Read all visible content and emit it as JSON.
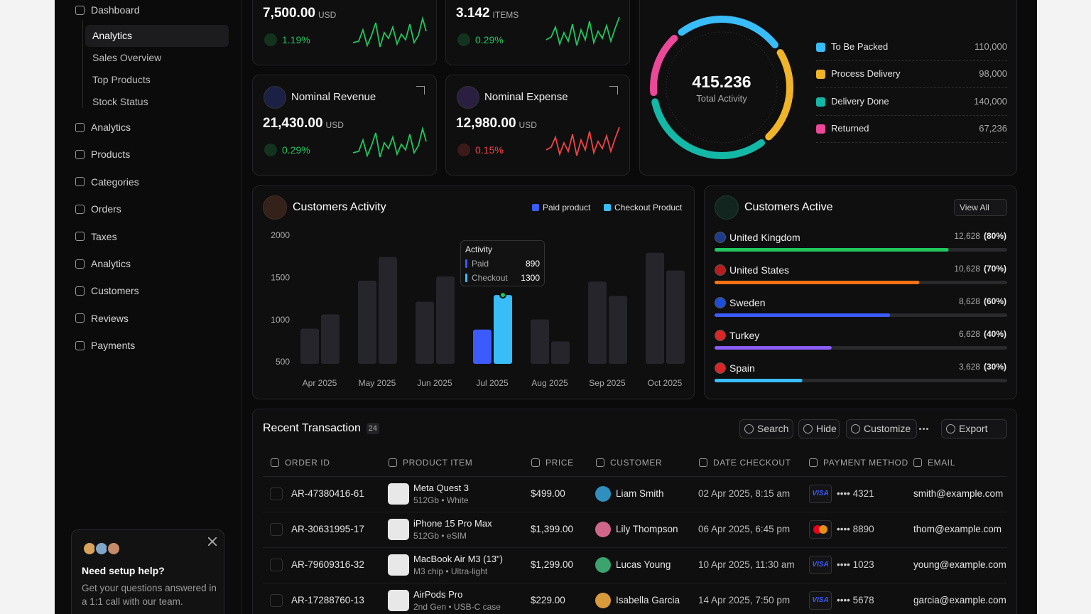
{
  "sidebar": {
    "dashboard": "Dashboard",
    "sub_items": [
      "Analytics",
      "Sales Overview",
      "Top Products",
      "Stock Status"
    ],
    "items": [
      "Analytics",
      "Products",
      "Categories",
      "Orders",
      "Taxes",
      "Analytics",
      "Customers",
      "Reviews",
      "Payments"
    ]
  },
  "help": {
    "title": "Need setup help?",
    "text": "Get your questions answered in a 1:1 call with our team."
  },
  "stats": [
    {
      "value": "7,500.00",
      "unit": "USD",
      "change": "1.19%",
      "color": "#22c55e"
    },
    {
      "value": "3.142",
      "unit": "ITEMS",
      "change": "0.29%",
      "color": "#22c55e"
    },
    {
      "title": "Nominal Revenue",
      "value": "21,430.00",
      "unit": "USD",
      "change": "0.29%",
      "color": "#22c55e"
    },
    {
      "title": "Nominal Expense",
      "value": "12,980.00",
      "unit": "USD",
      "change": "0.15%",
      "color": "#ef4444"
    }
  ],
  "activity": {
    "total": "415.236",
    "label": "Total Activity",
    "legend": [
      {
        "name": "To Be Packed",
        "value": 110000,
        "label": "110,000",
        "color": "#38bdf8"
      },
      {
        "name": "Process Delivery",
        "value": 98000,
        "label": "98,000",
        "color": "#f0b429"
      },
      {
        "name": "Delivery Done",
        "value": 140000,
        "label": "140,000",
        "color": "#14b8a6"
      },
      {
        "name": "Returned",
        "value": 67236,
        "label": "67,236",
        "color": "#ec4899"
      }
    ]
  },
  "chart_data": {
    "type": "bar",
    "title": "Customers Activity",
    "categories": [
      "Apr 2025",
      "May 2025",
      "Jun 2025",
      "Jul 2025",
      "Aug 2025",
      "Sep 2025",
      "Oct 2025"
    ],
    "series": [
      {
        "name": "Paid product",
        "color": "#3b5bfd",
        "values": [
          900,
          1470,
          1220,
          890,
          1010,
          1460,
          1800
        ]
      },
      {
        "name": "Checkout Product",
        "color": "#38bdf8",
        "values": [
          1070,
          1750,
          1520,
          1300,
          750,
          1290,
          1590
        ]
      }
    ],
    "muted_color": "#25252b",
    "ylim": [
      500,
      2000
    ],
    "yticks": [
      500,
      1000,
      1500,
      2000
    ],
    "tooltip": {
      "title": "Activity",
      "labels": [
        "Paid",
        "Checkout"
      ],
      "category": "Jul 2025"
    }
  },
  "customers_active": {
    "title": "Customers Active",
    "action": "View All",
    "countries": [
      {
        "name": "United Kingdom",
        "count": "12,628",
        "percent": 80,
        "percent_label": "(80%)",
        "color": "#22c55e"
      },
      {
        "name": "United States",
        "count": "10,628",
        "percent": 70,
        "percent_label": "(70%)",
        "color": "#f97316"
      },
      {
        "name": "Sweden",
        "count": "8,628",
        "percent": 60,
        "percent_label": "(60%)",
        "color": "#3b5bfd"
      },
      {
        "name": "Turkey",
        "count": "6,628",
        "percent": 40,
        "percent_label": "(40%)",
        "color": "#8b5cf6"
      },
      {
        "name": "Spain",
        "count": "3,628",
        "percent": 30,
        "percent_label": "(30%)",
        "color": "#38bdf8"
      }
    ]
  },
  "transactions": {
    "title": "Recent Transaction",
    "count": "24",
    "buttons": [
      "Search",
      "Hide",
      "Customize",
      "Export"
    ],
    "columns": [
      "ORDER ID",
      "PRODUCT ITEM",
      "PRICE",
      "CUSTOMER",
      "DATE CHECKOUT",
      "PAYMENT METHOD",
      "EMAIL"
    ],
    "rows": [
      {
        "id": "AR-47380416-61",
        "product": "Meta Quest 3",
        "detail": "512Gb • White",
        "price": "$499.00",
        "customer": "Liam Smith",
        "date": "02 Apr 2025, 8:15 am",
        "brand": "VISA",
        "card": "•••• 4321",
        "email": "smith@example.com"
      },
      {
        "id": "AR-30631995-17",
        "product": "iPhone 15 Pro Max",
        "detail": "512Gb • eSIM",
        "price": "$1,399.00",
        "customer": "Lily Thompson",
        "date": "06 Apr 2025, 6:45 pm",
        "card": "•••• 8890",
        "email": "thom@example.com"
      },
      {
        "id": "AR-79609316-32",
        "product": "MacBook Air M3 (13\")",
        "detail": "M3 chip • Ultra-light",
        "price": "$1,299.00",
        "customer": "Lucas Young",
        "date": "10 Apr 2025, 11:30 am",
        "brand": "VISA",
        "card": "•••• 1023",
        "email": "young@example.com"
      },
      {
        "id": "AR-17288760-13",
        "product": "AirPods Pro",
        "detail": "2nd Gen • USB-C case",
        "price": "$229.00",
        "customer": "Isabella Garcia",
        "date": "14 Apr 2025, 7:50 pm",
        "brand": "VISA",
        "card": "•••• 5678",
        "email": "garcia@example.com"
      }
    ]
  }
}
